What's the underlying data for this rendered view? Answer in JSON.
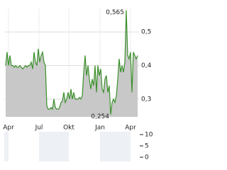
{
  "chart_data": [
    {
      "type": "line",
      "series": [
        {
          "color": "#3a8f2a",
          "fill": "#c8c8c8",
          "values": [
            0.4,
            0.44,
            0.4,
            0.43,
            0.4,
            0.4,
            0.395,
            0.4,
            0.395,
            0.395,
            0.4,
            0.395,
            0.39,
            0.395,
            0.4,
            0.395,
            0.4,
            0.4,
            0.41,
            0.39,
            0.44,
            0.41,
            0.4,
            0.45,
            0.41,
            0.43,
            0.44,
            0.41,
            0.4,
            0.28,
            0.27,
            0.27,
            0.275,
            0.27,
            0.3,
            0.275,
            0.27,
            0.27,
            0.275,
            0.29,
            0.295,
            0.32,
            0.29,
            0.3,
            0.32,
            0.3,
            0.33,
            0.3,
            0.32,
            0.3,
            0.3,
            0.3,
            0.305,
            0.3,
            0.31,
            0.38,
            0.43,
            0.37,
            0.4,
            0.36,
            0.33,
            0.36,
            0.34,
            0.4,
            0.32,
            0.4,
            0.37,
            0.39,
            0.33,
            0.32,
            0.36,
            0.37,
            0.32,
            0.34,
            0.254,
            0.29,
            0.3,
            0.29,
            0.31,
            0.36,
            0.42,
            0.38,
            0.4,
            0.38,
            0.41,
            0.565,
            0.43,
            0.42,
            0.44,
            0.32,
            0.44,
            0.43,
            0.42,
            0.43
          ]
        }
      ],
      "max_label": "0,565",
      "min_label": "0,254",
      "xlim": [
        0,
        93
      ],
      "xticks": [
        {
          "value": 2,
          "label": "Apr"
        },
        {
          "value": 23.5,
          "label": "Jul"
        },
        {
          "value": 44.5,
          "label": "Okt"
        },
        {
          "value": 66.5,
          "label": "Jan"
        },
        {
          "value": 88,
          "label": "Apr"
        }
      ],
      "ylim": [
        0.247,
        0.57
      ],
      "yticks": [
        {
          "value": 0.3,
          "label": "0,3"
        },
        {
          "value": 0.4,
          "label": "0,4"
        },
        {
          "value": 0.5,
          "label": "0,5"
        }
      ],
      "grid": true
    },
    {
      "type": "volume",
      "ylim": [
        0,
        11.25
      ],
      "yticks": [
        0,
        5,
        10
      ]
    }
  ]
}
